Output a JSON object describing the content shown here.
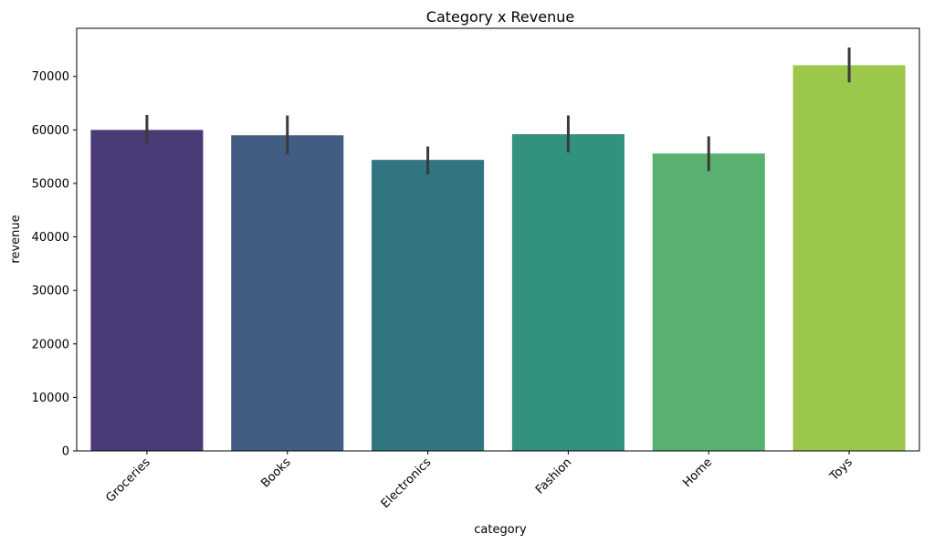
{
  "chart_data": {
    "type": "bar",
    "title": "Category x Revenue",
    "xlabel": "category",
    "ylabel": "revenue",
    "categories": [
      "Groceries",
      "Books",
      "Electronics",
      "Fashion",
      "Home",
      "Toys"
    ],
    "values": [
      60000,
      59000,
      54400,
      59200,
      55600,
      72100
    ],
    "error_low": [
      57300,
      55500,
      51700,
      55800,
      52300,
      68900
    ],
    "error_high": [
      62800,
      62700,
      56900,
      62700,
      58800,
      75400
    ],
    "colors": [
      "#4a3a75",
      "#415e82",
      "#317482",
      "#33927f",
      "#58b16f",
      "#9bc74a"
    ],
    "error_color": "#3a3a3a",
    "ylim": [
      0,
      79000
    ],
    "yticks": [
      0,
      10000,
      20000,
      30000,
      40000,
      50000,
      60000,
      70000
    ],
    "ytick_labels": [
      "0",
      "10000",
      "20000",
      "30000",
      "40000",
      "50000",
      "60000",
      "70000"
    ],
    "grid": false,
    "legend": "none"
  }
}
